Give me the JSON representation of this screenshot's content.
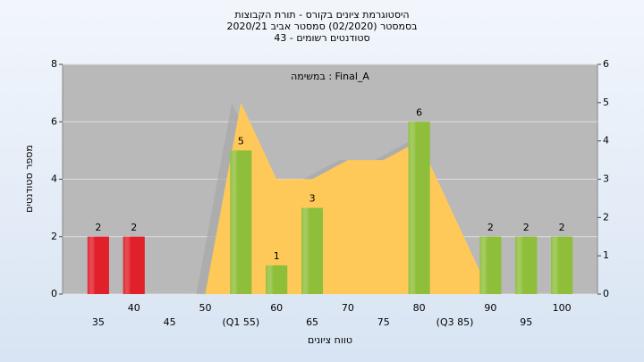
{
  "chart_data": {
    "type": "bar",
    "title": [
      "היסטוגרמת ציונים בקורס - תורת הקבוצות",
      "בסמסטר  (02/2020)  סמסטר אביב 2020/21",
      "סטודנטים רשומים - 43"
    ],
    "annotation": "במשימה : Final_A",
    "xlabel": "טווח ציונים",
    "ylabel": "מספר סטודנטים",
    "categories": [
      "35",
      "40",
      "45",
      "50",
      "(Q1 55)",
      "60",
      "65",
      "70",
      "75",
      "80",
      "(Q3 85)",
      "90",
      "95",
      "100"
    ],
    "values": [
      2,
      2,
      0,
      0,
      5,
      1,
      3,
      0,
      0,
      6,
      0,
      2,
      2,
      2
    ],
    "colors": [
      "#e0202a",
      "#e0202a",
      "#8fbf3a",
      "#8fbf3a",
      "#8fbf3a",
      "#8fbf3a",
      "#8fbf3a",
      "#8fbf3a",
      "#8fbf3a",
      "#8fbf3a",
      "#8fbf3a",
      "#8fbf3a",
      "#8fbf3a",
      "#8fbf3a"
    ],
    "area": {
      "color": "#ffc95a",
      "axis": "y2",
      "values": [
        null,
        null,
        null,
        0,
        5,
        3,
        3,
        3.5,
        3.5,
        4,
        2,
        0,
        null,
        null
      ]
    },
    "ylim": [
      0,
      8
    ],
    "yticks": [
      0,
      2,
      4,
      6,
      8
    ],
    "y2lim": [
      0,
      6
    ],
    "y2ticks": [
      0,
      1,
      2,
      3,
      4,
      5,
      6
    ],
    "grid": true
  }
}
